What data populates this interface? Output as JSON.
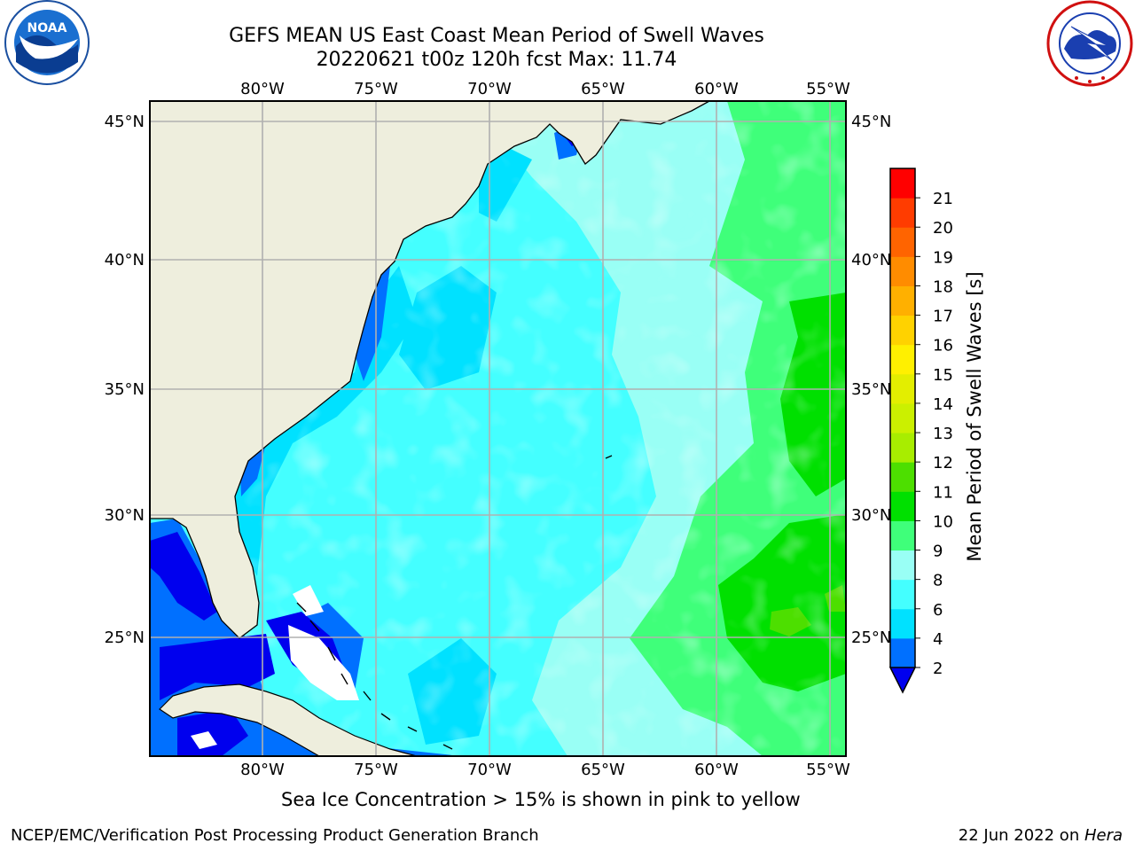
{
  "title": {
    "line1": "GEFS MEAN US East Coast Mean Period of Swell Waves",
    "line2": "20220621 t00z 120h fcst   Max: 11.74"
  },
  "map": {
    "lon_labels": [
      "80°W",
      "75°W",
      "70°W",
      "65°W",
      "60°W",
      "55°W"
    ],
    "lat_labels": [
      "45°N",
      "40°N",
      "35°N",
      "30°N",
      "25°N"
    ],
    "land_color": "#eeeedd",
    "grid_color": "#b0b0b0"
  },
  "colorbar": {
    "label": "Mean Period of Swell Waves [s]",
    "ticks": [
      "2",
      "4",
      "6",
      "8",
      "9",
      "10",
      "11",
      "12",
      "13",
      "14",
      "15",
      "16",
      "17",
      "18",
      "19",
      "20",
      "21"
    ],
    "colors": [
      "#0070ff",
      "#00e1ff",
      "#44ffff",
      "#99fff5",
      "#3fff7a",
      "#00e000",
      "#4ddf00",
      "#a8ed00",
      "#cbf000",
      "#e3ee00",
      "#fff000",
      "#ffd200",
      "#ffb000",
      "#ff8c00",
      "#ff6400",
      "#ff3c00",
      "#ff0000"
    ],
    "under_color": "#0000ee"
  },
  "logos": {
    "noaa_text": "NOAA",
    "nws_text": "NATIONAL WEATHER SERVICE"
  },
  "footer": {
    "ice_note": "Sea Ice Concentration > 15% is shown in pink to yellow",
    "producer": "NCEP/EMC/Verification Post Processing Product Generation Branch",
    "date": "22 Jun 2022 on ",
    "host": "Hera"
  }
}
